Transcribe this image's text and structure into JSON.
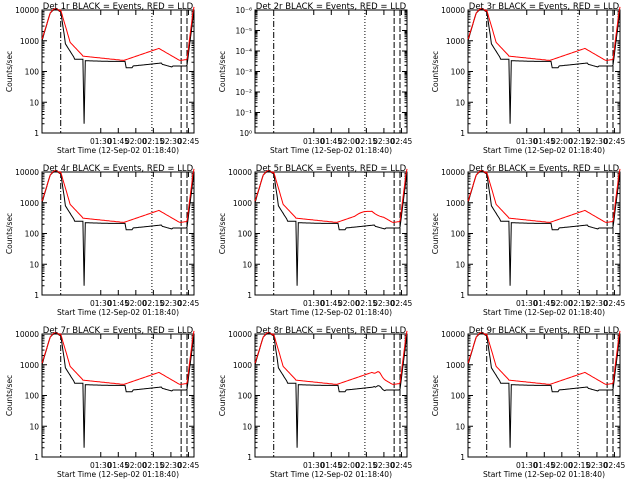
{
  "figure": {
    "x_label": "Start Time (12-Sep-02 01:18:40)",
    "y_label": "Counts/sec",
    "colors": {
      "events": "#000000",
      "lld": "#ff0000",
      "axes": "#000000"
    }
  },
  "chart_data": [
    {
      "type": "line",
      "title": "Det 1r BLACK = Events, RED = LLD",
      "xlabel": "Start Time (12-Sep-02 01:18:40)",
      "ylabel": "Counts/sec",
      "y_scale": "log",
      "ylim": [
        1,
        10000
      ],
      "y_ticks": [
        "1",
        "10",
        "100",
        "1000",
        "10000"
      ],
      "x_ticks": [
        "01:30",
        "01:45",
        "02:00",
        "02:15",
        "02:30",
        "02:45"
      ],
      "profile": "normal",
      "series": [
        {
          "name": "BLACK = Events",
          "color": "#000000"
        },
        {
          "name": "RED = LLD",
          "color": "#ff0000"
        }
      ]
    },
    {
      "type": "line",
      "title": "Det 2r BLACK = Events, RED = LLD",
      "xlabel": "Start Time (12-Sep-02 01:18:40)",
      "ylabel": "Counts/sec",
      "y_scale": "log",
      "ylim": [
        1e-06,
        1
      ],
      "y_ticks": [
        "10⁰",
        "10⁻¹",
        "10⁻²",
        "10⁻³",
        "10⁻⁴",
        "10⁻⁵",
        "10⁻⁶"
      ],
      "x_ticks": [
        "01:30",
        "01:45",
        "02:00",
        "02:15",
        "02:30",
        "02:45"
      ],
      "profile": "empty",
      "series": []
    },
    {
      "type": "line",
      "title": "Det 3r BLACK = Events, RED = LLD",
      "xlabel": "Start Time (12-Sep-02 01:18:40)",
      "ylabel": "Counts/sec",
      "y_scale": "log",
      "ylim": [
        1,
        10000
      ],
      "y_ticks": [
        "1",
        "10",
        "100",
        "1000",
        "10000"
      ],
      "x_ticks": [
        "01:30",
        "01:45",
        "02:00",
        "02:15",
        "02:30",
        "02:45"
      ],
      "profile": "normal",
      "series": [
        {
          "name": "BLACK = Events",
          "color": "#000000"
        },
        {
          "name": "RED = LLD",
          "color": "#ff0000"
        }
      ]
    },
    {
      "type": "line",
      "title": "Det 4r BLACK = Events, RED = LLD",
      "xlabel": "Start Time (12-Sep-02 01:18:40)",
      "ylabel": "Counts/sec",
      "y_scale": "log",
      "ylim": [
        1,
        10000
      ],
      "y_ticks": [
        "1",
        "10",
        "100",
        "1000",
        "10000"
      ],
      "x_ticks": [
        "01:30",
        "01:45",
        "02:00",
        "02:15",
        "02:30",
        "02:45"
      ],
      "profile": "normal",
      "series": [
        {
          "name": "BLACK = Events",
          "color": "#000000"
        },
        {
          "name": "RED = LLD",
          "color": "#ff0000"
        }
      ]
    },
    {
      "type": "line",
      "title": "Det 5r BLACK = Events, RED = LLD",
      "xlabel": "Start Time (12-Sep-02 01:18:40)",
      "ylabel": "Counts/sec",
      "y_scale": "log",
      "ylim": [
        1,
        10000
      ],
      "y_ticks": [
        "1",
        "10",
        "100",
        "1000",
        "10000"
      ],
      "x_ticks": [
        "01:30",
        "01:45",
        "02:00",
        "02:15",
        "02:30",
        "02:45"
      ],
      "profile": "det5",
      "series": [
        {
          "name": "BLACK = Events",
          "color": "#000000"
        },
        {
          "name": "RED = LLD",
          "color": "#ff0000"
        }
      ]
    },
    {
      "type": "line",
      "title": "Det 6r BLACK = Events, RED = LLD",
      "xlabel": "Start Time (12-Sep-02 01:18:40)",
      "ylabel": "Counts/sec",
      "y_scale": "log",
      "ylim": [
        1,
        10000
      ],
      "y_ticks": [
        "1",
        "10",
        "100",
        "1000",
        "10000"
      ],
      "x_ticks": [
        "01:30",
        "01:45",
        "02:00",
        "02:15",
        "02:30",
        "02:45"
      ],
      "profile": "normal",
      "series": [
        {
          "name": "BLACK = Events",
          "color": "#000000"
        },
        {
          "name": "RED = LLD",
          "color": "#ff0000"
        }
      ]
    },
    {
      "type": "line",
      "title": "Det 7r BLACK = Events, RED = LLD",
      "xlabel": "Start Time (12-Sep-02 01:18:40)",
      "ylabel": "Counts/sec",
      "y_scale": "log",
      "ylim": [
        1,
        10000
      ],
      "y_ticks": [
        "1",
        "10",
        "100",
        "1000",
        "10000"
      ],
      "x_ticks": [
        "01:30",
        "01:45",
        "02:00",
        "02:15",
        "02:30",
        "02:45"
      ],
      "profile": "normal",
      "series": [
        {
          "name": "BLACK = Events",
          "color": "#000000"
        },
        {
          "name": "RED = LLD",
          "color": "#ff0000"
        }
      ]
    },
    {
      "type": "line",
      "title": "Det 8r BLACK = Events, RED = LLD",
      "xlabel": "Start Time (12-Sep-02 01:18:40)",
      "ylabel": "Counts/sec",
      "y_scale": "log",
      "ylim": [
        1,
        10000
      ],
      "y_ticks": [
        "1",
        "10",
        "100",
        "1000",
        "10000"
      ],
      "x_ticks": [
        "01:30",
        "01:45",
        "02:00",
        "02:15",
        "02:30",
        "02:45"
      ],
      "profile": "det8",
      "series": [
        {
          "name": "BLACK = Events",
          "color": "#000000"
        },
        {
          "name": "RED = LLD",
          "color": "#ff0000"
        }
      ]
    },
    {
      "type": "line",
      "title": "Det 9r BLACK = Events, RED = LLD",
      "xlabel": "Start Time (12-Sep-02 01:18:40)",
      "ylabel": "Counts/sec",
      "y_scale": "log",
      "ylim": [
        1,
        10000
      ],
      "y_ticks": [
        "1",
        "10",
        "100",
        "1000",
        "10000"
      ],
      "x_ticks": [
        "01:30",
        "01:45",
        "02:00",
        "02:15",
        "02:30",
        "02:45"
      ],
      "profile": "normal",
      "series": [
        {
          "name": "BLACK = Events",
          "color": "#000000"
        },
        {
          "name": "RED = LLD",
          "color": "#ff0000"
        }
      ]
    }
  ]
}
